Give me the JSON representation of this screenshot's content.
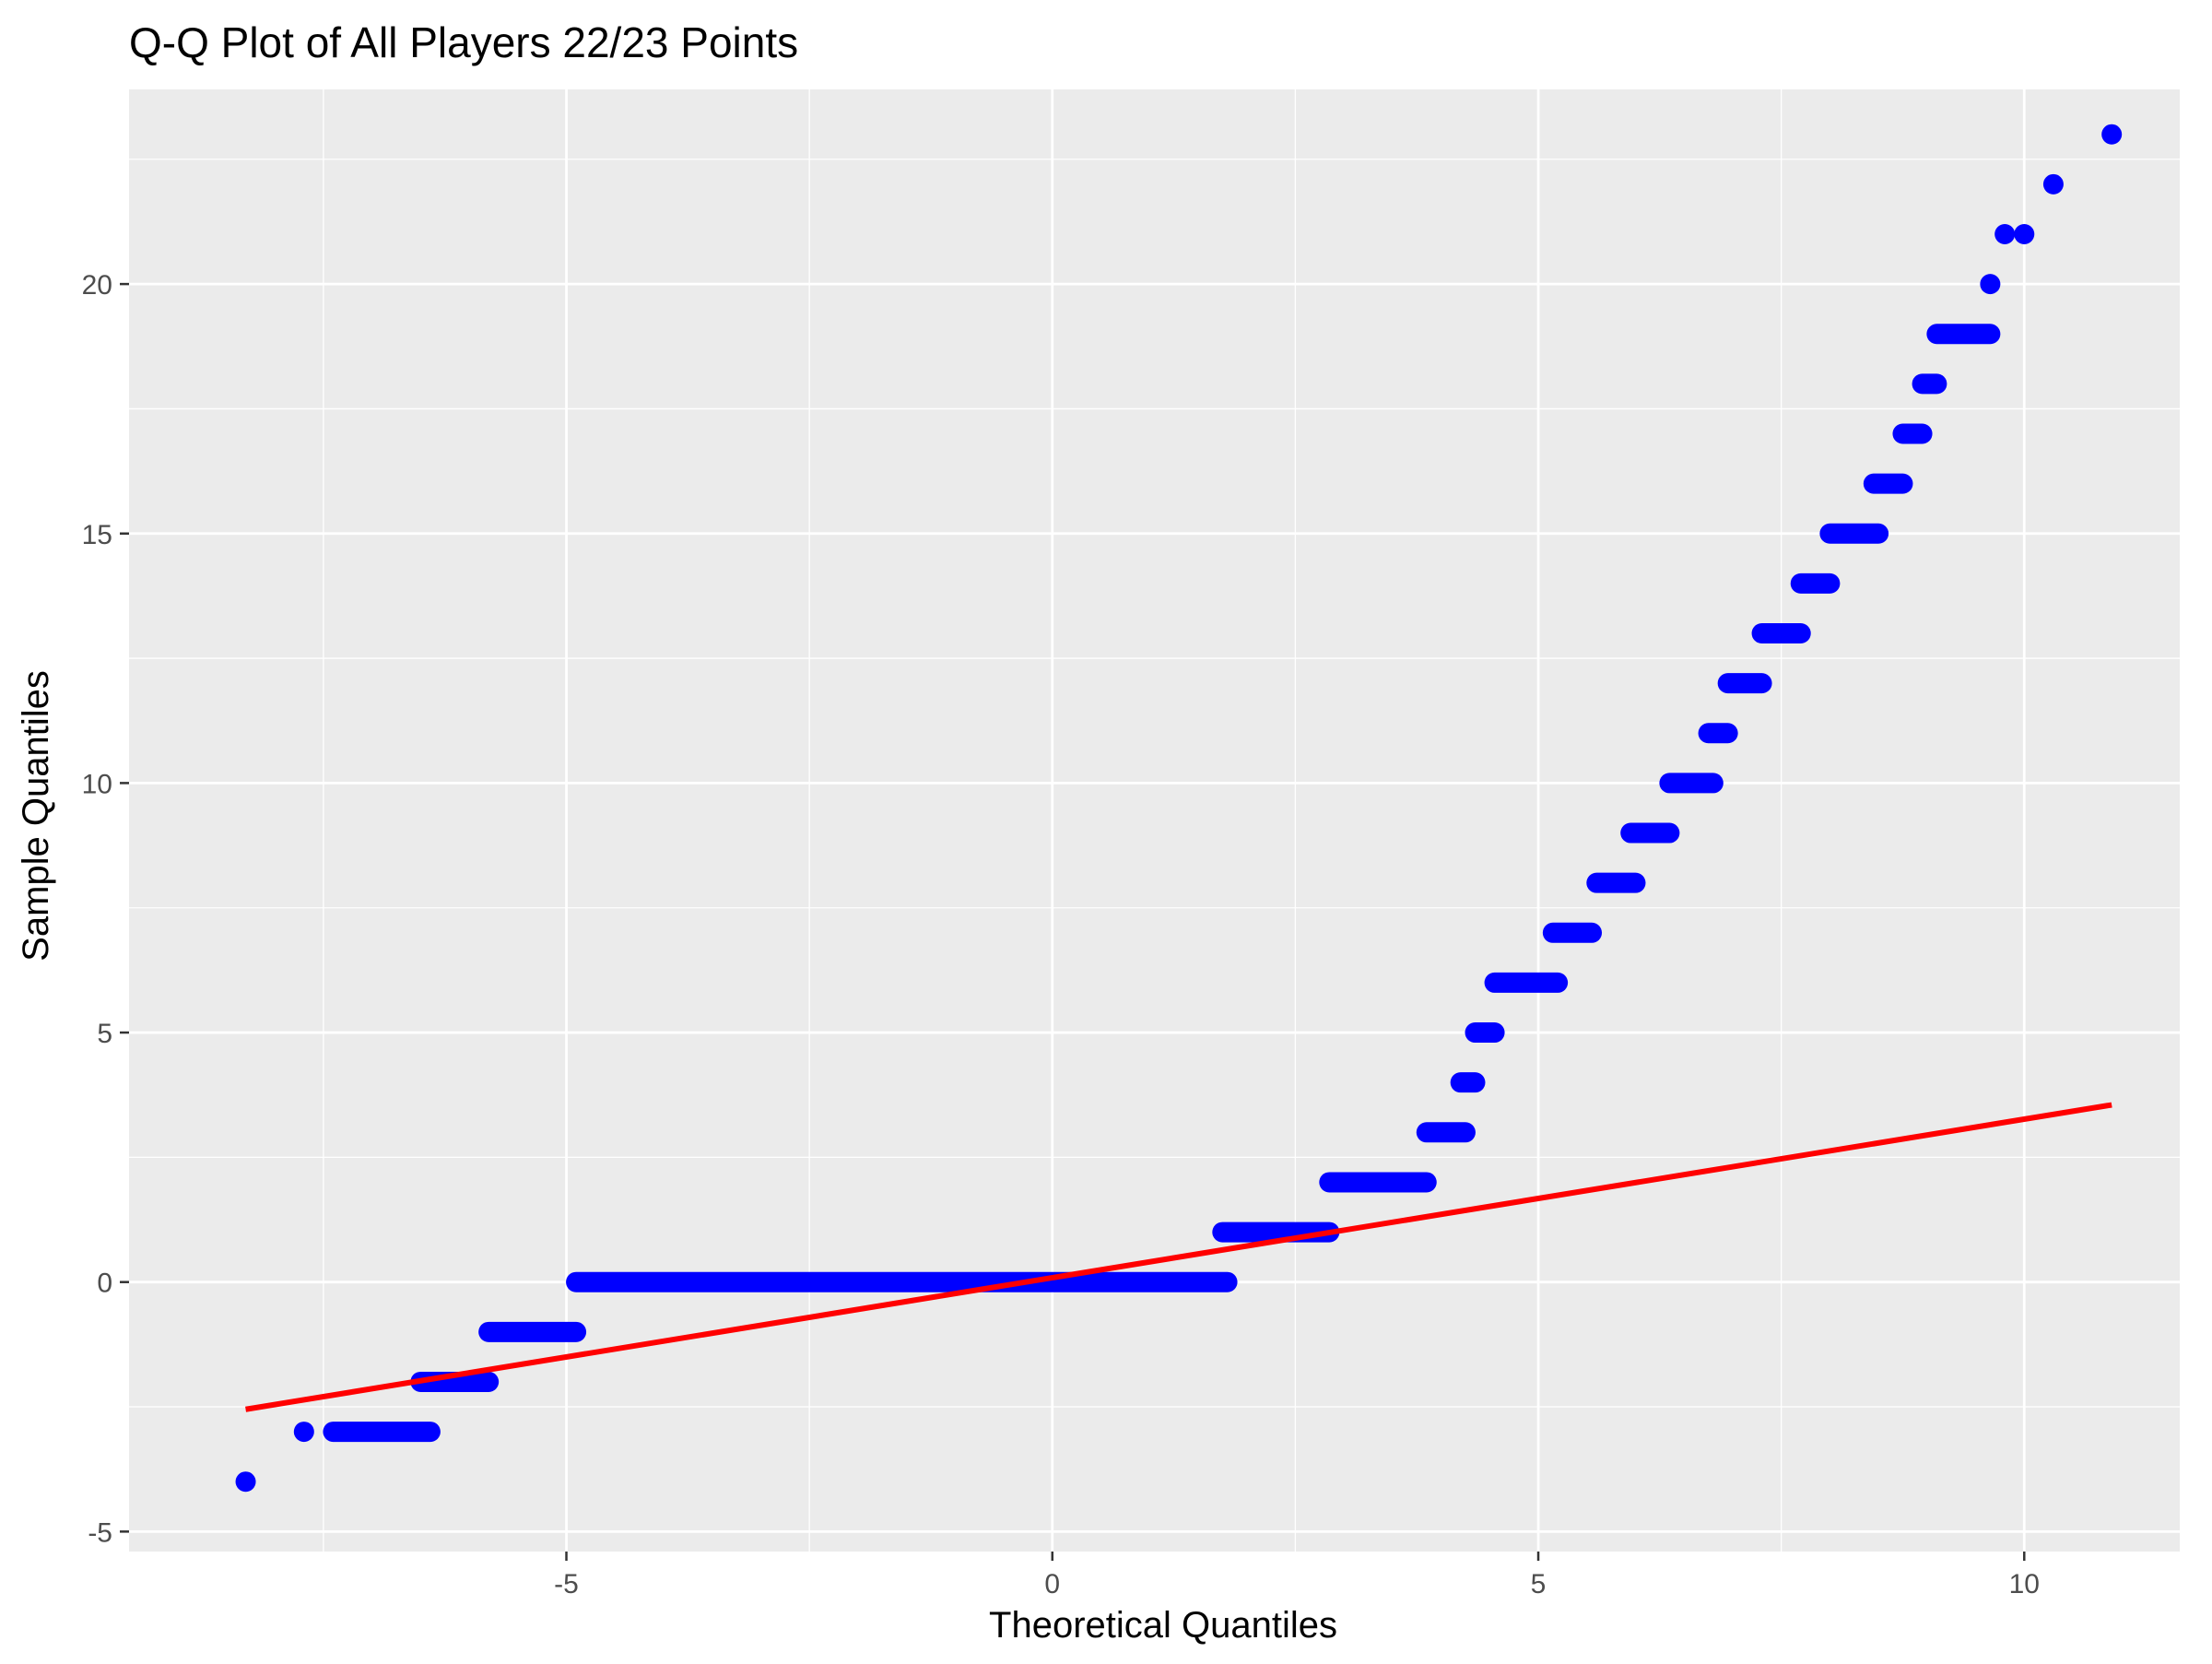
{
  "colors": {
    "panel": "#EBEBEB",
    "grid": "#FFFFFF",
    "points": "#0000FF",
    "line": "#FF0000",
    "tick_text": "#4D4D4D",
    "title_text": "#000000"
  },
  "chart_data": {
    "type": "scatter",
    "title": "Q-Q Plot of All Players 22/23 Points",
    "xlabel": "Theoretical Quantiles",
    "ylabel": "Sample Quantiles",
    "xlim": [
      -9.5,
      11.6
    ],
    "ylim": [
      -5.4,
      23.9
    ],
    "x_ticks": [
      -5,
      0,
      5,
      10
    ],
    "x_tick_labels": [
      "-5",
      "0",
      "5",
      "10"
    ],
    "y_ticks": [
      -5,
      0,
      5,
      10,
      15,
      20
    ],
    "y_tick_labels": [
      "-5",
      "0",
      "5",
      "10",
      "15",
      "20"
    ],
    "x_minor_ticks": [
      -7.5,
      -2.5,
      2.5,
      7.5
    ],
    "y_minor_ticks": [
      -2.5,
      2.5,
      7.5,
      12.5,
      17.5,
      22.5
    ],
    "grid": true,
    "legend": "none",
    "point_runs": [
      {
        "y": -4,
        "x_start": -8.3,
        "x_end": -8.3
      },
      {
        "y": -3,
        "x_start": -7.7,
        "x_end": -7.7
      },
      {
        "y": -3,
        "x_start": -7.4,
        "x_end": -6.4
      },
      {
        "y": -2,
        "x_start": -6.5,
        "x_end": -5.8
      },
      {
        "y": -1,
        "x_start": -5.8,
        "x_end": -4.9
      },
      {
        "y": 0,
        "x_start": -4.9,
        "x_end": 1.8
      },
      {
        "y": 1,
        "x_start": 1.75,
        "x_end": 2.85
      },
      {
        "y": 2,
        "x_start": 2.85,
        "x_end": 3.85
      },
      {
        "y": 3,
        "x_start": 3.85,
        "x_end": 4.25
      },
      {
        "y": 4,
        "x_start": 4.2,
        "x_end": 4.35
      },
      {
        "y": 5,
        "x_start": 4.35,
        "x_end": 4.55
      },
      {
        "y": 6,
        "x_start": 4.55,
        "x_end": 5.2
      },
      {
        "y": 7,
        "x_start": 5.15,
        "x_end": 5.55
      },
      {
        "y": 8,
        "x_start": 5.6,
        "x_end": 6.0
      },
      {
        "y": 9,
        "x_start": 5.95,
        "x_end": 6.35
      },
      {
        "y": 10,
        "x_start": 6.35,
        "x_end": 6.8
      },
      {
        "y": 11,
        "x_start": 6.75,
        "x_end": 6.95
      },
      {
        "y": 12,
        "x_start": 6.95,
        "x_end": 7.3
      },
      {
        "y": 13,
        "x_start": 7.3,
        "x_end": 7.7
      },
      {
        "y": 14,
        "x_start": 7.7,
        "x_end": 8.0
      },
      {
        "y": 15,
        "x_start": 8.0,
        "x_end": 8.5
      },
      {
        "y": 16,
        "x_start": 8.45,
        "x_end": 8.75
      },
      {
        "y": 17,
        "x_start": 8.75,
        "x_end": 8.95
      },
      {
        "y": 18,
        "x_start": 8.95,
        "x_end": 9.1
      },
      {
        "y": 19,
        "x_start": 9.1,
        "x_end": 9.65
      },
      {
        "y": 20,
        "x_start": 9.65,
        "x_end": 9.65
      },
      {
        "y": 21,
        "x_start": 9.8,
        "x_end": 9.8
      },
      {
        "y": 21,
        "x_start": 10.0,
        "x_end": 10.0
      },
      {
        "y": 22,
        "x_start": 10.3,
        "x_end": 10.3
      },
      {
        "y": 23,
        "x_start": 10.9,
        "x_end": 10.9
      }
    ],
    "reference_line": {
      "x": [
        -8.3,
        10.9
      ],
      "y": [
        -2.55,
        3.55
      ]
    }
  }
}
